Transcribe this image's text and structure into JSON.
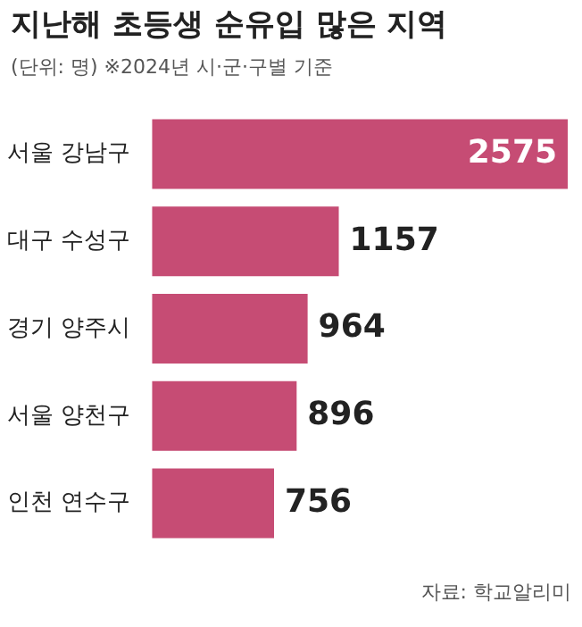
{
  "chart_data": {
    "type": "bar",
    "orientation": "horizontal",
    "title": "지난해 초등생 순유입 많은 지역",
    "subtitle": "(단위: 명)  ※2024년 시·군·구별 기준",
    "categories": [
      "서울 강남구",
      "대구 수성구",
      "경기 양주시",
      "서울 양천구",
      "인천 연수구"
    ],
    "values": [
      2575,
      1157,
      964,
      896,
      756
    ],
    "color": "#c64c74",
    "xlim": [
      0,
      2575
    ],
    "tick_labels": "y",
    "legend": false,
    "data_labels": true,
    "annotations": [
      "자료: 학교알리미"
    ]
  }
}
